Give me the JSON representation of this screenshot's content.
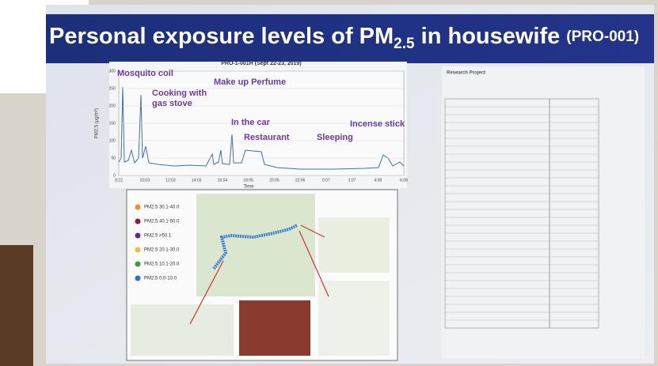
{
  "slide": {
    "title": {
      "main": "Personal exposure levels of PM",
      "sub": "2.5",
      "rest": " in housewife",
      "code": "(PRO-001)"
    },
    "chart": {
      "title": "PRO-1-001H (Sept 22-23, 2019)",
      "y_label": "PM2.5 (μg/m³)",
      "x_label": "Time",
      "yticks": [
        "300",
        "250",
        "200",
        "150",
        "100",
        "50",
        "0"
      ],
      "xticks": [
        "8:22",
        "10:03",
        "12:03",
        "14:03",
        "16:04",
        "18:05",
        "20:05",
        "22:06",
        "0:07",
        "2:07",
        "4:08",
        "6:08"
      ],
      "annotations": [
        "Mosquito coil",
        "Cooking with",
        "gas stove",
        "Make up Perfume",
        "In the car",
        "Restaurant",
        "Sleeping",
        "Incense stick"
      ]
    },
    "map_legend": [
      "PM2.5 30.1-40.0",
      "PM2.5 40.1-50.0",
      "PM2.5 >50.1",
      "PM2.5 20.1-30.0",
      "PM2.5 10.1-20.0",
      "PM2.5 0.0-10.0"
    ],
    "form": {
      "heading": "Research Project"
    }
  }
}
